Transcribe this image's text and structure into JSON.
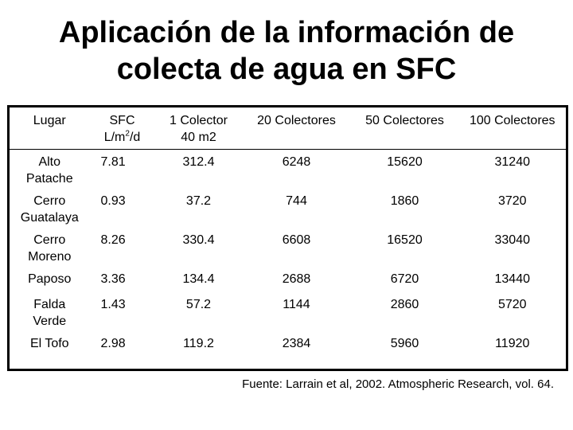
{
  "title": {
    "line1": "Aplicación de la información de",
    "line2": "colecta de agua en SFC"
  },
  "table": {
    "headers": [
      {
        "line1": "Lugar",
        "line2": ""
      },
      {
        "line1": "SFC",
        "line2_pre": "L/m",
        "line2_sup": "2",
        "line2_post": "/d"
      },
      {
        "line1": "1 Colector",
        "line2": "40 m2"
      },
      {
        "line1": "20 Colectores",
        "line2": ""
      },
      {
        "line1": "50 Colectores",
        "line2": ""
      },
      {
        "line1": "100 Colectores",
        "line2": ""
      }
    ],
    "rows": [
      {
        "lugar_1": "Alto",
        "lugar_2": "Patache",
        "sfc": "7.81",
        "c1": "312.4",
        "c20": "6248",
        "c50": "15620",
        "c100": "31240"
      },
      {
        "lugar_1": "Cerro",
        "lugar_2": "Guatalaya",
        "sfc": "0.93",
        "c1": "37.2",
        "c20": "744",
        "c50": "1860",
        "c100": "3720"
      },
      {
        "lugar_1": "Cerro",
        "lugar_2": "Moreno",
        "sfc": "8.26",
        "c1": "330.4",
        "c20": "6608",
        "c50": "16520",
        "c100": "33040"
      },
      {
        "lugar_1": "Paposo",
        "lugar_2": "",
        "sfc": "3.36",
        "c1": "134.4",
        "c20": "2688",
        "c50": "6720",
        "c100": "13440"
      },
      {
        "lugar_1": "Falda",
        "lugar_2": "Verde",
        "sfc": "1.43",
        "c1": "57.2",
        "c20": "1144",
        "c50": "2860",
        "c100": "5720"
      },
      {
        "lugar_1": "El Tofo",
        "lugar_2": "",
        "sfc": "2.98",
        "c1": "119.2",
        "c20": "2384",
        "c50": "5960",
        "c100": "11920"
      }
    ]
  },
  "source": "Fuente: Larrain et al, 2002. Atmospheric Research, vol. 64."
}
